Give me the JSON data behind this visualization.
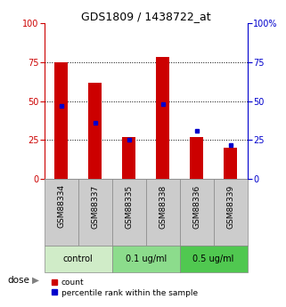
{
  "title": "GDS1809 / 1438722_at",
  "samples": [
    "GSM88334",
    "GSM88337",
    "GSM88335",
    "GSM88338",
    "GSM88336",
    "GSM88339"
  ],
  "count_values": [
    75,
    62,
    27,
    78,
    27,
    20
  ],
  "percentile_values": [
    47,
    36,
    25,
    48,
    31,
    22
  ],
  "groups": [
    {
      "label": "control",
      "indices": [
        0,
        1
      ],
      "color": "#d0ecc8"
    },
    {
      "label": "0.1 ug/ml",
      "indices": [
        2,
        3
      ],
      "color": "#8cdc8c"
    },
    {
      "label": "0.5 ug/ml",
      "indices": [
        4,
        5
      ],
      "color": "#50c850"
    }
  ],
  "bar_color": "#cc0000",
  "dot_color": "#0000cc",
  "left_axis_color": "#cc0000",
  "right_axis_color": "#0000cc",
  "ylim": [
    0,
    100
  ],
  "yticks": [
    0,
    25,
    50,
    75,
    100
  ],
  "sample_bg": "#cccccc",
  "sample_border": "#888888",
  "dose_label": "dose",
  "legend_count_label": "count",
  "legend_percentile_label": "percentile rank within the sample",
  "fig_width": 3.21,
  "fig_height": 3.45,
  "dpi": 100
}
